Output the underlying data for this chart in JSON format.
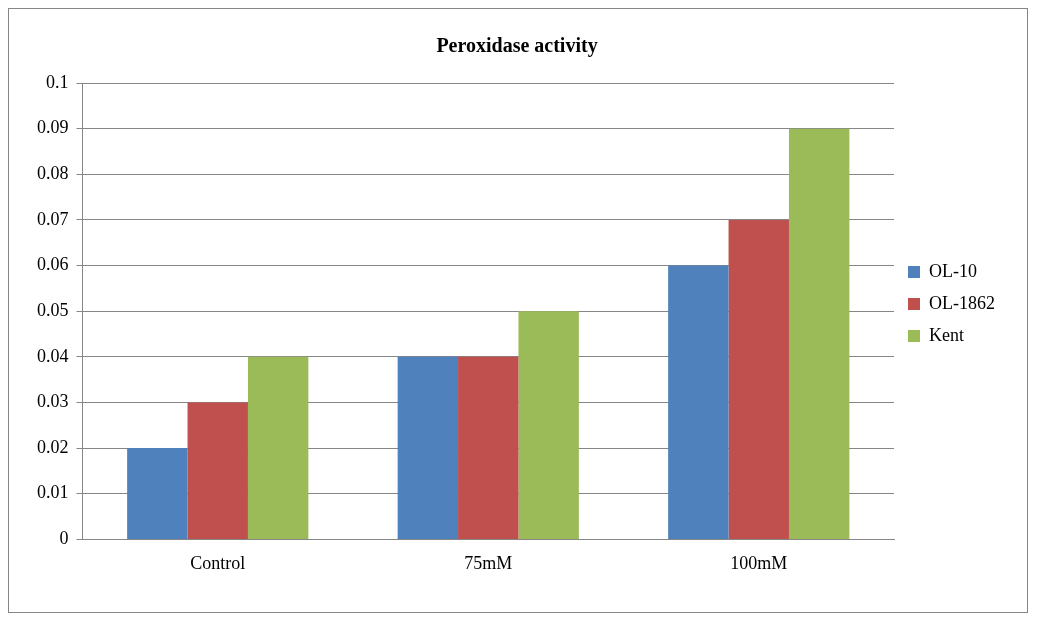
{
  "chart_data": {
    "type": "bar",
    "title": "Peroxidase activity",
    "categories": [
      "Control",
      "75mM",
      "100mM"
    ],
    "series": [
      {
        "name": "OL-10",
        "color": "#4f81bd",
        "values": [
          0.02,
          0.04,
          0.06
        ]
      },
      {
        "name": "OL-1862",
        "color": "#c0504d",
        "values": [
          0.03,
          0.04,
          0.07
        ]
      },
      {
        "name": "Kent",
        "color": "#9bbb59",
        "values": [
          0.04,
          0.05,
          0.09
        ]
      }
    ],
    "ylim": [
      0,
      0.1
    ],
    "yticks": [
      0,
      0.01,
      0.02,
      0.03,
      0.04,
      0.05,
      0.06,
      0.07,
      0.08,
      0.09,
      0.1
    ],
    "grid": "y",
    "legend": "right"
  }
}
